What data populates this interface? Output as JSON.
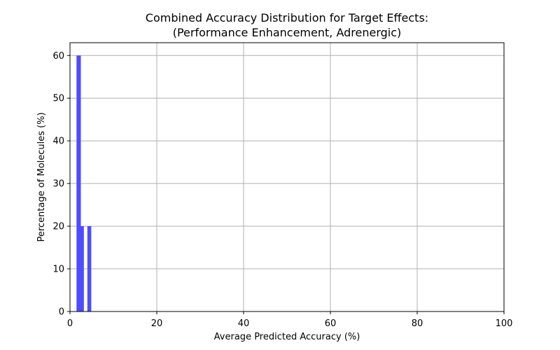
{
  "chart_data": {
    "type": "bar",
    "title_lines": [
      "Combined Accuracy Distribution for Target Effects:",
      "(Performance Enhancement, Adrenergic)"
    ],
    "xlabel": "Average Predicted Accuracy (%)",
    "ylabel": "Percentage of Molecules (%)",
    "xlim": [
      0,
      100
    ],
    "ylim": [
      0,
      63
    ],
    "xticks": [
      0,
      20,
      40,
      60,
      80,
      100
    ],
    "yticks": [
      0,
      10,
      20,
      30,
      40,
      50,
      60
    ],
    "grid": true,
    "bar_color": "#4d4dff",
    "bars": [
      {
        "x_start": 1.5,
        "x_end": 2.5,
        "value": 60
      },
      {
        "x_start": 2.5,
        "x_end": 3.2,
        "value": 20
      },
      {
        "x_start": 4.0,
        "x_end": 4.9,
        "value": 20
      }
    ]
  }
}
